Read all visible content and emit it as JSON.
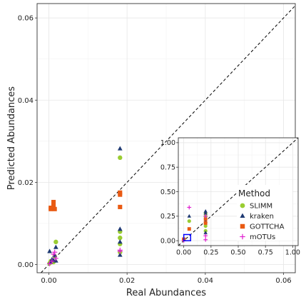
{
  "chart_data": [
    {
      "type": "scatter",
      "title": "",
      "xlabel": "Real Abundances",
      "ylabel": "Predicted Abundances",
      "xlim": [
        -0.003,
        0.063
      ],
      "ylim": [
        -0.002,
        0.0635
      ],
      "xticks": [
        0.0,
        0.02,
        0.04,
        0.06
      ],
      "yticks": [
        0.0,
        0.02,
        0.04,
        0.06
      ],
      "xtick_labels": [
        "0.00",
        "0.02",
        "0.04",
        "0.06"
      ],
      "ytick_labels": [
        "0.00",
        "0.02",
        "0.04",
        "0.06"
      ],
      "grid": true,
      "reference_line": "y = x (dashed)",
      "series": [
        {
          "name": "SLIMM",
          "color": "#9ACD32",
          "marker": "circle",
          "points": [
            [
              0.0002,
              0.0003
            ],
            [
              0.0005,
              0.0008
            ],
            [
              0.0012,
              0.0006
            ],
            [
              0.0015,
              0.002
            ],
            [
              0.0018,
              0.0055
            ],
            [
              0.0182,
              0.026
            ],
            [
              0.0182,
              0.008
            ],
            [
              0.0182,
              0.0065
            ],
            [
              0.0182,
              0.005
            ],
            [
              0.0182,
              0.003
            ]
          ]
        },
        {
          "name": "kraken",
          "color": "#1F3A73",
          "marker": "triangle",
          "points": [
            [
              0.0002,
              0.0032
            ],
            [
              0.0004,
              0.0005
            ],
            [
              0.0008,
              0.0012
            ],
            [
              0.0012,
              0.001
            ],
            [
              0.0015,
              0.0022
            ],
            [
              0.0018,
              0.0042
            ],
            [
              0.0018,
              0.0009
            ],
            [
              0.0182,
              0.0282
            ],
            [
              0.0182,
              0.0086
            ],
            [
              0.0182,
              0.0055
            ],
            [
              0.0182,
              0.0023
            ]
          ]
        },
        {
          "name": "GOTTCHA",
          "color": "#E95A13",
          "marker": "square",
          "points": [
            [
              0.0005,
              0.0135
            ],
            [
              0.0005,
              0.0138
            ],
            [
              0.0012,
              0.0142
            ],
            [
              0.0012,
              0.0152
            ],
            [
              0.0015,
              0.0135
            ],
            [
              0.0182,
              0.0175
            ],
            [
              0.0182,
              0.017
            ],
            [
              0.0182,
              0.014
            ]
          ]
        },
        {
          "name": "mOTUs",
          "color": "#E020D0",
          "marker": "plus",
          "points": [
            [
              0.0002,
              0.0002
            ],
            [
              0.0008,
              0.0008
            ],
            [
              0.0012,
              0.0025
            ],
            [
              0.0015,
              0.003
            ],
            [
              0.0018,
              0.0015
            ],
            [
              0.0182,
              0.0035
            ],
            [
              0.0182,
              0.0032
            ]
          ]
        }
      ]
    },
    {
      "type": "scatter",
      "title": "",
      "xlabel": "",
      "ylabel": "",
      "xlim": [
        -0.05,
        1.05
      ],
      "ylim": [
        -0.05,
        1.05
      ],
      "xticks": [
        0.0,
        0.25,
        0.5,
        0.75,
        1.0
      ],
      "yticks": [
        0.0,
        0.25,
        0.5,
        0.75,
        1.0
      ],
      "xtick_labels": [
        "0.00",
        "0.25",
        "0.50",
        "0.75",
        "1.00"
      ],
      "ytick_labels": [
        "0.00",
        "0.25",
        "0.50",
        "0.75",
        "1.00"
      ],
      "grid": true,
      "reference_line": "y = x (dashed)",
      "legend_title": "Method",
      "legend_placement": "center-right (inside inset)",
      "highlight_box_x": [
        0.0,
        0.063
      ],
      "highlight_box_y": [
        0.0,
        0.063
      ],
      "series": [
        {
          "name": "SLIMM",
          "color": "#9ACD32",
          "marker": "circle",
          "points": [
            [
              0.0,
              0.01
            ],
            [
              0.05,
              0.2
            ],
            [
              0.2,
              0.28
            ],
            [
              0.2,
              0.25
            ],
            [
              0.2,
              0.15
            ],
            [
              0.2,
              0.1
            ]
          ]
        },
        {
          "name": "kraken",
          "color": "#1F3A73",
          "marker": "triangle",
          "points": [
            [
              0.0,
              0.02
            ],
            [
              0.05,
              0.25
            ],
            [
              0.2,
              0.3
            ],
            [
              0.2,
              0.28
            ],
            [
              0.2,
              0.2
            ],
            [
              0.2,
              0.08
            ]
          ]
        },
        {
          "name": "GOTTCHA",
          "color": "#E95A13",
          "marker": "square",
          "points": [
            [
              0.0,
              0.015
            ],
            [
              0.05,
              0.12
            ],
            [
              0.2,
              0.22
            ],
            [
              0.2,
              0.18
            ]
          ]
        },
        {
          "name": "mOTUs",
          "color": "#E020D0",
          "marker": "plus",
          "points": [
            [
              0.0,
              0.0
            ],
            [
              0.05,
              0.34
            ],
            [
              0.2,
              0.05
            ],
            [
              0.2,
              0.01
            ],
            [
              0.2,
              0.25
            ]
          ]
        }
      ]
    }
  ]
}
